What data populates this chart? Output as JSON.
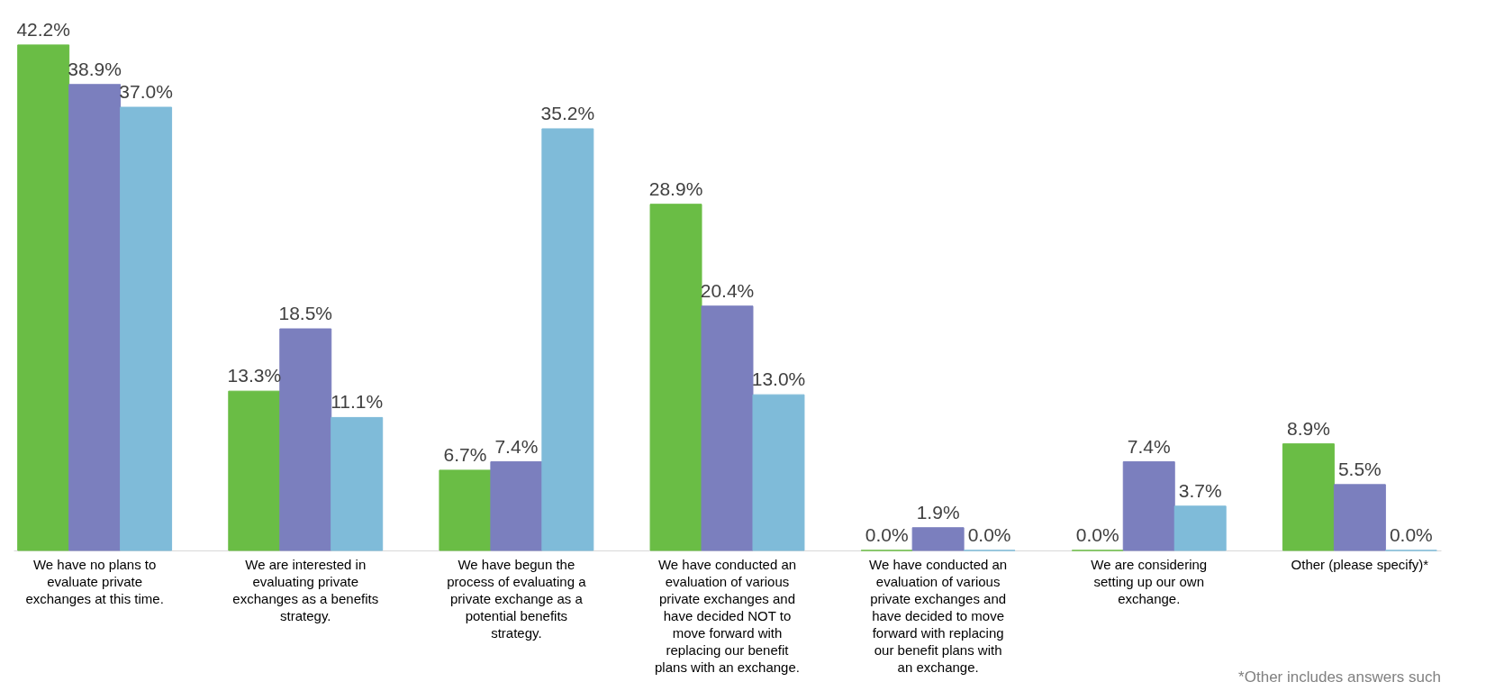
{
  "chart_data": {
    "type": "bar",
    "categories": [
      "We have no plans to evaluate private exchanges at this time.",
      "We are interested in evaluating private exchanges as a benefits strategy.",
      "We have begun the process of evaluating a private exchange as a potential benefits strategy.",
      "We have conducted an evaluation of various private exchanges and have decided NOT to move forward with replacing our benefit plans with an exchange.",
      "We have conducted an evaluation of various private exchanges and have decided to move forward with replacing our benefit plans with an exchange.",
      "We are considering setting up our own exchange.",
      "Other (please specify)*"
    ],
    "series": [
      {
        "color": "#6abd45",
        "values": [
          42.2,
          13.3,
          6.7,
          28.9,
          0.0,
          0.0,
          8.9
        ],
        "value_labels": [
          "42.2%",
          "13.3%",
          "6.7%",
          "28.9%",
          "0.0%",
          "0.0%",
          "8.9%"
        ]
      },
      {
        "color": "#7b7fbe",
        "values": [
          38.9,
          18.5,
          7.4,
          20.4,
          1.9,
          7.4,
          5.5
        ],
        "value_labels": [
          "38.9%",
          "18.5%",
          "7.4%",
          "20.4%",
          "1.9%",
          "7.4%",
          "5.5%"
        ]
      },
      {
        "color": "#7fbbd9",
        "values": [
          37.0,
          11.1,
          35.2,
          13.0,
          0.0,
          3.7,
          0.0
        ],
        "value_labels": [
          "37.0%",
          "11.1%",
          "35.2%",
          "13.0%",
          "0.0%",
          "3.7%",
          "0.0%"
        ]
      }
    ],
    "annotations": [
      "*Other includes answers such"
    ]
  }
}
